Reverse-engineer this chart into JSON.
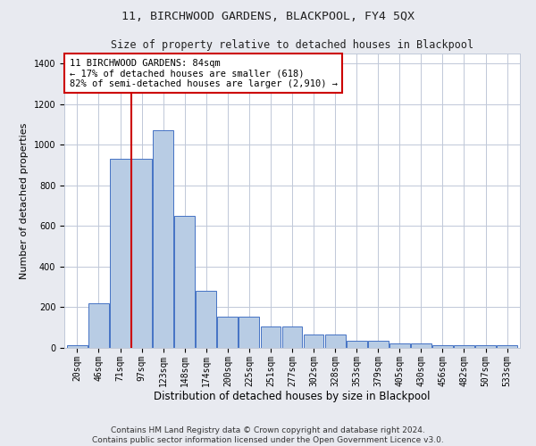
{
  "title": "11, BIRCHWOOD GARDENS, BLACKPOOL, FY4 5QX",
  "subtitle": "Size of property relative to detached houses in Blackpool",
  "xlabel": "Distribution of detached houses by size in Blackpool",
  "ylabel": "Number of detached properties",
  "bar_labels": [
    "20sqm",
    "46sqm",
    "71sqm",
    "97sqm",
    "123sqm",
    "148sqm",
    "174sqm",
    "200sqm",
    "225sqm",
    "251sqm",
    "277sqm",
    "302sqm",
    "328sqm",
    "353sqm",
    "379sqm",
    "405sqm",
    "430sqm",
    "456sqm",
    "482sqm",
    "507sqm",
    "533sqm"
  ],
  "bar_values": [
    15,
    220,
    930,
    930,
    1070,
    650,
    280,
    155,
    155,
    105,
    105,
    68,
    68,
    35,
    35,
    22,
    22,
    12,
    12,
    12,
    12
  ],
  "bar_color": "#b8cce4",
  "bar_edge_color": "#4472c4",
  "red_line_x": 2.5,
  "annotation_text": "11 BIRCHWOOD GARDENS: 84sqm\n← 17% of detached houses are smaller (618)\n82% of semi-detached houses are larger (2,910) →",
  "annotation_box_color": "#ffffff",
  "annotation_box_edge_color": "#cc0000",
  "ylim": [
    0,
    1450
  ],
  "yticks": [
    0,
    200,
    400,
    600,
    800,
    1000,
    1200,
    1400
  ],
  "footer_line1": "Contains HM Land Registry data © Crown copyright and database right 2024.",
  "footer_line2": "Contains public sector information licensed under the Open Government Licence v3.0.",
  "background_color": "#e8eaf0",
  "plot_background": "#ffffff",
  "grid_color": "#c0c8d8",
  "title_fontsize": 9.5,
  "subtitle_fontsize": 8.5,
  "xlabel_fontsize": 8.5,
  "ylabel_fontsize": 8,
  "tick_fontsize": 7,
  "annot_fontsize": 7.5,
  "footer_fontsize": 6.5
}
